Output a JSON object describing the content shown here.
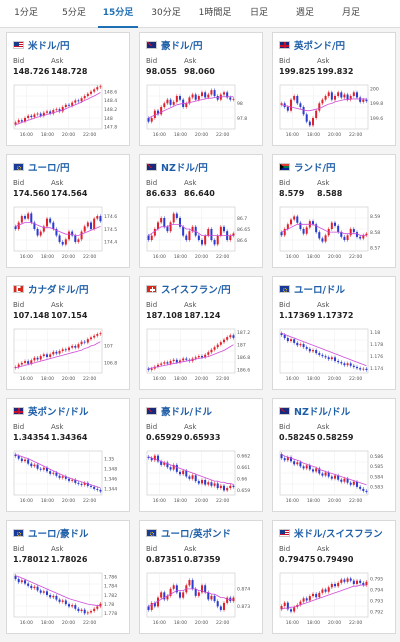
{
  "tabs": [
    "1分足",
    "5分足",
    "15分足",
    "30分足",
    "1時間足",
    "日足",
    "週足",
    "月足"
  ],
  "active_tab": 2,
  "labels": {
    "bid": "Bid",
    "ask": "Ask"
  },
  "time_labels": [
    "16:00",
    "18:00",
    "20:00",
    "22:00"
  ],
  "colors": {
    "up": "#e0202a",
    "down": "#2a3bd0",
    "ma": "#d04cd8",
    "accent": "#1f6fb5"
  },
  "cards": [
    {
      "name": "米ドル/円",
      "bid": "148.726",
      "ask": "148.728",
      "flag": "flag-us",
      "ticks": [
        "148.6",
        "148.4",
        "148.2",
        "148",
        "147.8"
      ],
      "closes": [
        147.9,
        147.95,
        147.92,
        148.0,
        148.05,
        148.02,
        148.08,
        148.1,
        148.05,
        148.12,
        148.15,
        148.1,
        148.18,
        148.2,
        148.15,
        148.25,
        148.3,
        148.28,
        148.35,
        148.4,
        148.38,
        148.45,
        148.5,
        148.55,
        148.6,
        148.65,
        148.7,
        148.72
      ],
      "ma": [
        147.85,
        147.87,
        147.9,
        147.92,
        147.95,
        147.97,
        148.0,
        148.02,
        148.04,
        148.06,
        148.08,
        148.1,
        148.12,
        148.14,
        148.16,
        148.18,
        148.21,
        148.24,
        148.27,
        148.3,
        148.33,
        148.36,
        148.4,
        148.43,
        148.47,
        148.5,
        148.54,
        148.58
      ],
      "ylim": [
        147.75,
        148.75
      ]
    },
    {
      "name": "豪ドル/円",
      "bid": "98.055",
      "ask": "98.060",
      "flag": "flag-au",
      "ticks": [
        "98",
        "97.8"
      ],
      "closes": [
        97.75,
        97.8,
        97.9,
        97.85,
        97.95,
        98.0,
        98.05,
        97.98,
        98.02,
        98.1,
        98.05,
        97.95,
        98.0,
        98.08,
        98.12,
        98.05,
        98.1,
        98.15,
        98.08,
        98.12,
        98.18,
        98.1,
        98.05,
        98.12,
        98.15,
        98.08,
        98.05,
        98.06
      ],
      "ma": [
        97.8,
        97.82,
        97.84,
        97.86,
        97.88,
        97.9,
        97.92,
        97.94,
        97.96,
        97.98,
        97.99,
        98.0,
        98.0,
        98.01,
        98.02,
        98.03,
        98.04,
        98.05,
        98.06,
        98.07,
        98.07,
        98.08,
        98.08,
        98.09,
        98.09,
        98.09,
        98.09,
        98.09
      ],
      "ylim": [
        97.65,
        98.25
      ]
    },
    {
      "name": "英ポンド/円",
      "bid": "199.825",
      "ask": "199.832",
      "flag": "flag-uk",
      "ticks": [
        "200",
        "199.8",
        "199.6"
      ],
      "closes": [
        199.8,
        199.75,
        199.7,
        199.85,
        199.9,
        199.8,
        199.75,
        199.65,
        199.55,
        199.5,
        199.6,
        199.7,
        199.8,
        199.85,
        199.9,
        199.95,
        199.85,
        199.9,
        199.95,
        199.88,
        199.92,
        199.85,
        199.9,
        199.95,
        199.88,
        199.82,
        199.85,
        199.83
      ],
      "ma": [
        199.78,
        199.77,
        199.76,
        199.75,
        199.74,
        199.73,
        199.72,
        199.71,
        199.7,
        199.7,
        199.71,
        199.72,
        199.73,
        199.75,
        199.77,
        199.79,
        199.8,
        199.82,
        199.83,
        199.84,
        199.85,
        199.85,
        199.86,
        199.86,
        199.86,
        199.86,
        199.86,
        199.86
      ],
      "ylim": [
        199.45,
        200.05
      ]
    },
    {
      "name": "ユーロ/円",
      "bid": "174.560",
      "ask": "174.564",
      "flag": "flag-eu",
      "ticks": [
        "174.6",
        "174.5",
        "174.4"
      ],
      "closes": [
        174.5,
        174.55,
        174.6,
        174.58,
        174.62,
        174.55,
        174.5,
        174.45,
        174.48,
        174.52,
        174.58,
        174.55,
        174.5,
        174.45,
        174.4,
        174.38,
        174.42,
        174.48,
        174.45,
        174.4,
        174.42,
        174.48,
        174.52,
        174.55,
        174.5,
        174.58,
        174.6,
        174.56
      ],
      "ma": [
        174.52,
        174.53,
        174.54,
        174.55,
        174.55,
        174.55,
        174.54,
        174.53,
        174.52,
        174.51,
        174.51,
        174.51,
        174.5,
        174.49,
        174.48,
        174.47,
        174.46,
        174.46,
        174.46,
        174.45,
        174.45,
        174.46,
        174.47,
        174.48,
        174.49,
        174.5,
        174.51,
        174.52
      ],
      "ylim": [
        174.33,
        174.67
      ]
    },
    {
      "name": "NZドル/円",
      "bid": "86.633",
      "ask": "86.640",
      "flag": "flag-nz",
      "ticks": [
        "86.7",
        "86.65",
        "86.6"
      ],
      "closes": [
        86.6,
        86.62,
        86.65,
        86.68,
        86.7,
        86.66,
        86.64,
        86.68,
        86.72,
        86.7,
        86.66,
        86.62,
        86.6,
        86.64,
        86.66,
        86.62,
        86.6,
        86.58,
        86.62,
        86.65,
        86.6,
        86.58,
        86.62,
        86.66,
        86.64,
        86.6,
        86.62,
        86.63
      ],
      "ma": [
        86.62,
        86.63,
        86.64,
        86.65,
        86.66,
        86.66,
        86.66,
        86.67,
        86.67,
        86.67,
        86.67,
        86.66,
        86.65,
        86.65,
        86.64,
        86.64,
        86.63,
        86.62,
        86.62,
        86.62,
        86.62,
        86.62,
        86.62,
        86.62,
        86.62,
        86.62,
        86.62,
        86.62
      ],
      "ylim": [
        86.55,
        86.75
      ]
    },
    {
      "name": "ランド/円",
      "bid": "8.579",
      "ask": "8.588",
      "flag": "flag-za",
      "ticks": [
        "8.59",
        "8.58",
        "8.57"
      ],
      "closes": [
        8.578,
        8.582,
        8.585,
        8.588,
        8.59,
        8.586,
        8.582,
        8.579,
        8.583,
        8.587,
        8.585,
        8.58,
        8.576,
        8.574,
        8.578,
        8.582,
        8.586,
        8.584,
        8.58,
        8.577,
        8.575,
        8.578,
        8.582,
        8.58,
        8.577,
        8.576,
        8.578,
        8.579
      ],
      "ma": [
        8.58,
        8.581,
        8.582,
        8.583,
        8.584,
        8.585,
        8.585,
        8.585,
        8.585,
        8.585,
        8.585,
        8.584,
        8.583,
        8.582,
        8.581,
        8.58,
        8.58,
        8.58,
        8.58,
        8.58,
        8.579,
        8.579,
        8.579,
        8.579,
        8.579,
        8.578,
        8.578,
        8.578
      ],
      "ylim": [
        8.568,
        8.596
      ]
    },
    {
      "name": "カナダドル/円",
      "bid": "107.148",
      "ask": "107.154",
      "flag": "flag-ca",
      "ticks": [
        "107",
        "106.8"
      ],
      "closes": [
        106.75,
        106.78,
        106.8,
        106.82,
        106.79,
        106.83,
        106.86,
        106.84,
        106.88,
        106.9,
        106.87,
        106.9,
        106.93,
        106.91,
        106.94,
        106.96,
        106.95,
        106.98,
        107.0,
        106.98,
        107.02,
        107.05,
        107.04,
        107.08,
        107.1,
        107.12,
        107.14,
        107.15
      ],
      "ma": [
        106.74,
        106.75,
        106.76,
        106.77,
        106.78,
        106.79,
        106.8,
        106.81,
        106.82,
        106.83,
        106.84,
        106.85,
        106.86,
        106.87,
        106.88,
        106.89,
        106.9,
        106.91,
        106.92,
        106.93,
        106.94,
        106.95,
        106.97,
        106.98,
        107.0,
        107.01,
        107.03,
        107.05
      ],
      "ylim": [
        106.68,
        107.2
      ]
    },
    {
      "name": "スイスフラン/円",
      "bid": "187.108",
      "ask": "187.124",
      "flag": "flag-ch",
      "ticks": [
        "187.2",
        "187",
        "186.8",
        "186.6"
      ],
      "closes": [
        186.6,
        186.62,
        186.65,
        186.68,
        186.7,
        186.72,
        186.7,
        186.74,
        186.76,
        186.72,
        186.75,
        186.78,
        186.76,
        186.74,
        186.78,
        186.8,
        186.82,
        186.8,
        186.84,
        186.88,
        186.92,
        186.96,
        187.0,
        187.04,
        187.08,
        187.12,
        187.15,
        187.11
      ],
      "ma": [
        186.62,
        186.63,
        186.64,
        186.65,
        186.66,
        186.67,
        186.68,
        186.69,
        186.7,
        186.71,
        186.72,
        186.73,
        186.74,
        186.75,
        186.76,
        186.77,
        186.78,
        186.79,
        186.8,
        186.81,
        186.83,
        186.85,
        186.87,
        186.89,
        186.91,
        186.94,
        186.97,
        187.0
      ],
      "ylim": [
        186.55,
        187.25
      ]
    },
    {
      "name": "ユーロ/ドル",
      "bid": "1.17369",
      "ask": "1.17372",
      "flag": "flag-eu",
      "ticks": [
        "1.18",
        "1.178",
        "1.176",
        "1.174"
      ],
      "closes": [
        1.1795,
        1.179,
        1.1785,
        1.1788,
        1.1782,
        1.1778,
        1.178,
        1.1775,
        1.1772,
        1.1768,
        1.177,
        1.1765,
        1.1762,
        1.176,
        1.1758,
        1.1755,
        1.1758,
        1.1752,
        1.175,
        1.1748,
        1.1745,
        1.1748,
        1.1744,
        1.1742,
        1.174,
        1.1738,
        1.1739,
        1.1737
      ],
      "ma": [
        1.1798,
        1.1796,
        1.1794,
        1.1792,
        1.179,
        1.1788,
        1.1786,
        1.1784,
        1.1782,
        1.178,
        1.1778,
        1.1776,
        1.1774,
        1.1772,
        1.177,
        1.1768,
        1.1766,
        1.1764,
        1.1762,
        1.176,
        1.1758,
        1.1756,
        1.1754,
        1.1752,
        1.175,
        1.1748,
        1.1746,
        1.1744
      ],
      "ylim": [
        1.1732,
        1.1805
      ]
    },
    {
      "name": "英ポンド/ドル",
      "bid": "1.34354",
      "ask": "1.34364",
      "flag": "flag-uk",
      "ticks": [
        "1.35",
        "1.348",
        "1.346",
        "1.344"
      ],
      "closes": [
        1.3505,
        1.35,
        1.3495,
        1.3498,
        1.349,
        1.3485,
        1.3488,
        1.348,
        1.3478,
        1.3482,
        1.3475,
        1.347,
        1.3472,
        1.3466,
        1.3462,
        1.3465,
        1.346,
        1.3456,
        1.3458,
        1.3452,
        1.345,
        1.3448,
        1.3452,
        1.3446,
        1.3444,
        1.344,
        1.3438,
        1.3435
      ],
      "ma": [
        1.3508,
        1.3506,
        1.3504,
        1.3502,
        1.35,
        1.3497,
        1.3494,
        1.3491,
        1.3488,
        1.3485,
        1.3482,
        1.3479,
        1.3476,
        1.3473,
        1.347,
        1.3467,
        1.3464,
        1.3462,
        1.346,
        1.3458,
        1.3456,
        1.3454,
        1.3452,
        1.345,
        1.3448,
        1.3446,
        1.3444,
        1.3442
      ],
      "ylim": [
        1.3428,
        1.3515
      ]
    },
    {
      "name": "豪ドル/ドル",
      "bid": "0.65929",
      "ask": "0.65933",
      "flag": "flag-au",
      "ticks": [
        "0.662",
        "0.661",
        "0.66",
        "0.659"
      ],
      "closes": [
        0.6618,
        0.6616,
        0.662,
        0.6615,
        0.6612,
        0.6614,
        0.661,
        0.6608,
        0.6612,
        0.6606,
        0.6604,
        0.6607,
        0.6602,
        0.66,
        0.6603,
        0.6598,
        0.6596,
        0.6599,
        0.6595,
        0.6597,
        0.6594,
        0.6596,
        0.6592,
        0.6594,
        0.659,
        0.6592,
        0.6594,
        0.6593
      ],
      "ma": [
        0.6619,
        0.6618,
        0.6617,
        0.6616,
        0.6615,
        0.6614,
        0.6613,
        0.6612,
        0.6611,
        0.661,
        0.6609,
        0.6608,
        0.6607,
        0.6606,
        0.6605,
        0.6604,
        0.6603,
        0.6602,
        0.6601,
        0.66,
        0.6599,
        0.6598,
        0.6598,
        0.6597,
        0.6597,
        0.6596,
        0.6596,
        0.6595
      ],
      "ylim": [
        0.6586,
        0.6624
      ]
    },
    {
      "name": "NZドル/ドル",
      "bid": "0.58245",
      "ask": "0.58259",
      "flag": "flag-nz",
      "ticks": [
        "0.586",
        "0.585",
        "0.584",
        "0.583"
      ],
      "closes": [
        0.5858,
        0.5856,
        0.5859,
        0.5855,
        0.5852,
        0.5854,
        0.585,
        0.5848,
        0.5851,
        0.5847,
        0.5845,
        0.5848,
        0.5843,
        0.5841,
        0.5844,
        0.584,
        0.5838,
        0.5841,
        0.5837,
        0.5835,
        0.5838,
        0.5834,
        0.5832,
        0.5835,
        0.583,
        0.5828,
        0.5826,
        0.5825
      ],
      "ma": [
        0.5862,
        0.586,
        0.5859,
        0.5858,
        0.5857,
        0.5856,
        0.5855,
        0.5853,
        0.5852,
        0.5851,
        0.585,
        0.5849,
        0.5847,
        0.5846,
        0.5845,
        0.5844,
        0.5843,
        0.5842,
        0.5841,
        0.584,
        0.5839,
        0.5838,
        0.5837,
        0.5836,
        0.5835,
        0.5834,
        0.5833,
        0.5832
      ],
      "ylim": [
        0.5822,
        0.5865
      ]
    },
    {
      "name": "ユーロ/豪ドル",
      "bid": "1.78012",
      "ask": "1.78026",
      "flag": "flag-eu",
      "ticks": [
        "1.786",
        "1.784",
        "1.782",
        "1.78",
        "1.778"
      ],
      "closes": [
        1.7855,
        1.7848,
        1.7852,
        1.7845,
        1.784,
        1.7835,
        1.7838,
        1.783,
        1.7825,
        1.7828,
        1.782,
        1.7815,
        1.7818,
        1.781,
        1.7805,
        1.7808,
        1.78,
        1.7795,
        1.7798,
        1.779,
        1.7785,
        1.7788,
        1.778,
        1.7782,
        1.7785,
        1.779,
        1.7795,
        1.7801
      ],
      "ma": [
        1.7862,
        1.786,
        1.7857,
        1.7854,
        1.7851,
        1.7848,
        1.7845,
        1.7842,
        1.7839,
        1.7836,
        1.7833,
        1.783,
        1.7827,
        1.7824,
        1.7821,
        1.7818,
        1.7815,
        1.7812,
        1.781,
        1.7808,
        1.7806,
        1.7804,
        1.7802,
        1.78,
        1.7799,
        1.7798,
        1.7797,
        1.7797
      ],
      "ylim": [
        1.7772,
        1.7868
      ]
    },
    {
      "name": "ユーロ/英ポンド",
      "bid": "0.87351",
      "ask": "0.87359",
      "flag": "flag-eu",
      "ticks": [
        "0.874",
        "0.873"
      ],
      "closes": [
        0.8728,
        0.8732,
        0.873,
        0.8735,
        0.8738,
        0.8734,
        0.8736,
        0.874,
        0.8742,
        0.8738,
        0.8735,
        0.8738,
        0.8742,
        0.8745,
        0.874,
        0.8736,
        0.8738,
        0.8742,
        0.8738,
        0.8734,
        0.8736,
        0.8733,
        0.873,
        0.8728,
        0.8732,
        0.8735,
        0.8733,
        0.8735
      ],
      "ma": [
        0.873,
        0.8731,
        0.8732,
        0.8733,
        0.8734,
        0.8735,
        0.8736,
        0.8737,
        0.8738,
        0.8739,
        0.8739,
        0.8739,
        0.874,
        0.874,
        0.874,
        0.874,
        0.8739,
        0.8739,
        0.8738,
        0.8738,
        0.8737,
        0.8737,
        0.8736,
        0.8735,
        0.8735,
        0.8734,
        0.8734,
        0.8734
      ],
      "ylim": [
        0.8724,
        0.8749
      ]
    },
    {
      "name": "米ドル/スイスフラン",
      "bid": "0.79475",
      "ask": "0.79490",
      "flag": "flag-us",
      "ticks": [
        "0.795",
        "0.794",
        "0.793",
        "0.792"
      ],
      "closes": [
        0.7925,
        0.7928,
        0.7922,
        0.792,
        0.7924,
        0.7926,
        0.7929,
        0.7932,
        0.793,
        0.7934,
        0.7936,
        0.7933,
        0.7937,
        0.794,
        0.7938,
        0.7942,
        0.7945,
        0.7943,
        0.7946,
        0.7949,
        0.7947,
        0.795,
        0.7948,
        0.7945,
        0.7948,
        0.7946,
        0.7944,
        0.7947
      ],
      "ma": [
        0.7922,
        0.7923,
        0.7923,
        0.7924,
        0.7924,
        0.7925,
        0.7926,
        0.7927,
        0.7928,
        0.7929,
        0.793,
        0.7931,
        0.7932,
        0.7933,
        0.7934,
        0.7935,
        0.7936,
        0.7937,
        0.7938,
        0.7939,
        0.794,
        0.7941,
        0.7942,
        0.7943,
        0.7943,
        0.7944,
        0.7944,
        0.7944
      ],
      "ylim": [
        0.7915,
        0.7955
      ]
    }
  ]
}
